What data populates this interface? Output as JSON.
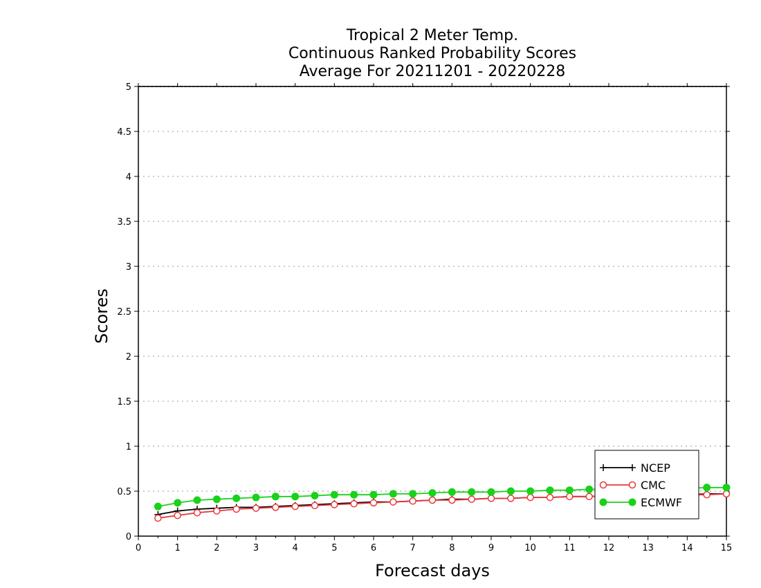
{
  "chart_data": {
    "type": "line",
    "title": [
      "Tropical 2 Meter Temp.",
      "Continuous Ranked Probability Scores",
      "Average For 20211201 - 20220228"
    ],
    "xlabel": "Forecast days",
    "ylabel": "Scores",
    "xlim": [
      0,
      15
    ],
    "ylim": [
      0,
      5
    ],
    "x_ticks": [
      "0",
      "1",
      "2",
      "3",
      "4",
      "5",
      "6",
      "7",
      "8",
      "9",
      "10",
      "11",
      "12",
      "13",
      "14",
      "15"
    ],
    "y_ticks": [
      "0",
      "0.5",
      "1",
      "1.5",
      "2",
      "2.5",
      "3",
      "3.5",
      "4",
      "4.5",
      "5"
    ],
    "grid": "horizontal-dotted",
    "legend_position": "bottom-right",
    "x": [
      0.5,
      1,
      1.5,
      2,
      2.5,
      3,
      3.5,
      4,
      4.5,
      5,
      5.5,
      6,
      6.5,
      7,
      7.5,
      8,
      8.5,
      9,
      9.5,
      10,
      10.5,
      11,
      11.5,
      12,
      12.5,
      13,
      13.5,
      14,
      14.5,
      15
    ],
    "series": [
      {
        "name": "NCEP",
        "color": "#000000",
        "marker": "plus",
        "values": [
          0.24,
          0.28,
          0.3,
          0.31,
          0.32,
          0.32,
          0.33,
          0.34,
          0.35,
          0.36,
          0.37,
          0.38,
          0.38,
          0.39,
          0.4,
          0.41,
          0.41,
          0.42,
          0.42,
          0.43,
          0.43,
          0.44,
          0.44,
          0.45,
          0.45,
          0.45,
          0.46,
          0.46,
          0.47,
          0.47
        ]
      },
      {
        "name": "CMC",
        "color": "#e8383c",
        "marker": "open-circle",
        "values": [
          0.2,
          0.23,
          0.26,
          0.28,
          0.3,
          0.31,
          0.32,
          0.33,
          0.34,
          0.35,
          0.36,
          0.37,
          0.38,
          0.39,
          0.4,
          0.4,
          0.41,
          0.42,
          0.42,
          0.43,
          0.43,
          0.44,
          0.44,
          0.45,
          0.45,
          0.45,
          0.46,
          0.46,
          0.46,
          0.47
        ]
      },
      {
        "name": "ECMWF",
        "color": "#19d219",
        "marker": "filled-circle",
        "values": [
          0.33,
          0.37,
          0.4,
          0.41,
          0.42,
          0.43,
          0.44,
          0.44,
          0.45,
          0.46,
          0.46,
          0.46,
          0.47,
          0.47,
          0.48,
          0.49,
          0.49,
          0.49,
          0.5,
          0.5,
          0.51,
          0.51,
          0.52,
          0.52,
          0.52,
          0.53,
          0.53,
          0.53,
          0.54,
          0.54
        ]
      }
    ]
  }
}
